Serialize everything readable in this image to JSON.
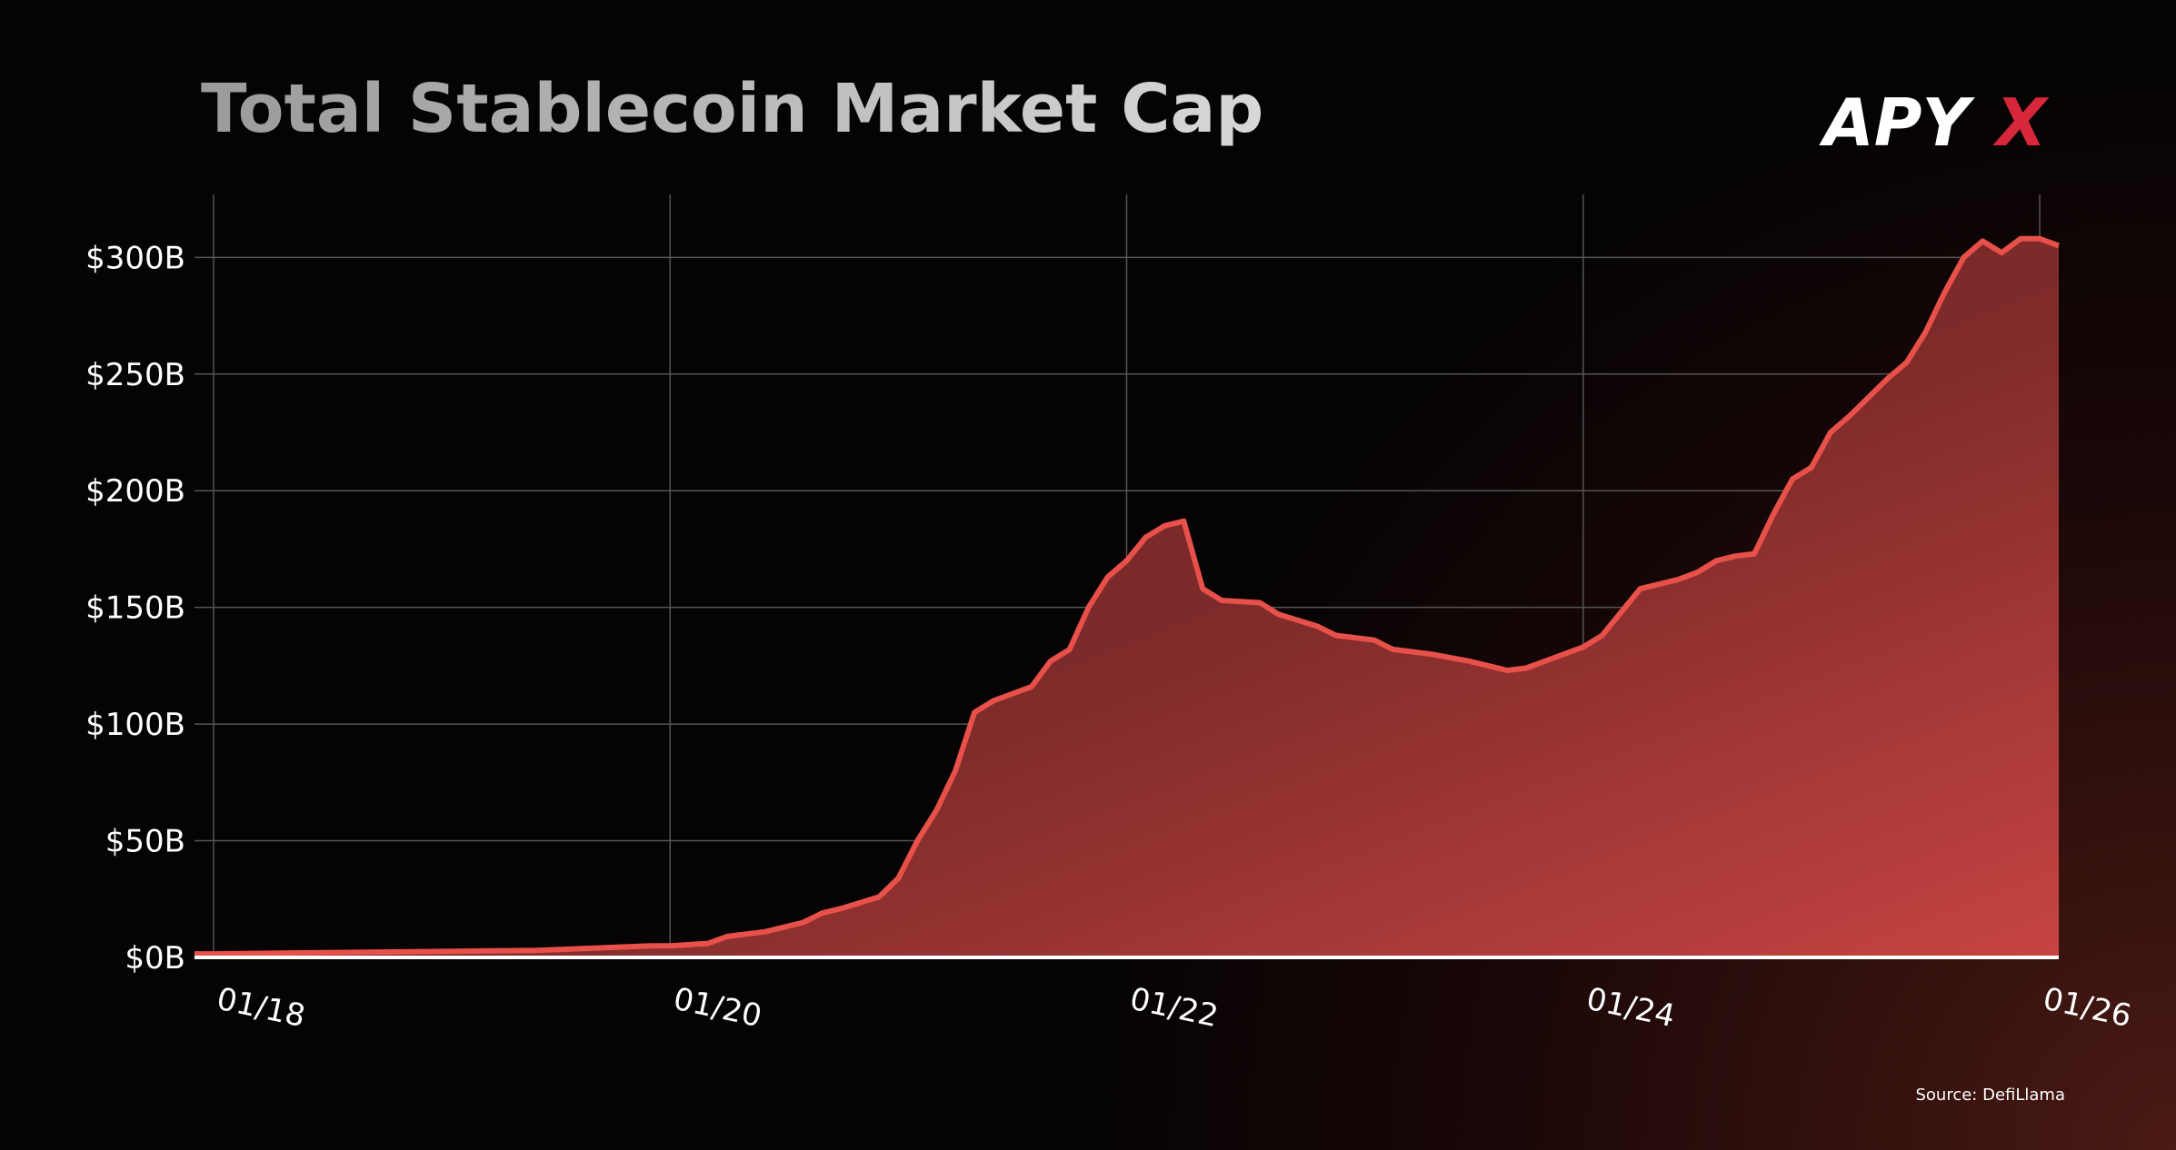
{
  "chart_data": {
    "type": "area",
    "title": "Total Stablecoin Market Cap",
    "logo": [
      "APY",
      "X"
    ],
    "source": "Source: DefiLlama",
    "color": "#e8504a",
    "x": [
      "2017-12",
      "2018-01",
      "2018-06",
      "2018-12",
      "2019-06",
      "2019-12",
      "2020-01",
      "2020-03",
      "2020-04",
      "2020-06",
      "2020-08",
      "2020-09",
      "2020-10",
      "2020-12",
      "2021-01",
      "2021-02",
      "2021-03",
      "2021-04",
      "2021-05",
      "2021-06",
      "2021-08",
      "2021-09",
      "2021-10",
      "2021-11",
      "2021-12",
      "2022-01",
      "2022-02",
      "2022-03",
      "2022-04",
      "2022-05",
      "2022-06",
      "2022-08",
      "2022-09",
      "2022-11",
      "2022-12",
      "2023-02",
      "2023-03",
      "2023-05",
      "2023-07",
      "2023-09",
      "2023-10",
      "2023-11",
      "2023-12",
      "2024-01",
      "2024-02",
      "2024-03",
      "2024-04",
      "2024-05",
      "2024-06",
      "2024-07",
      "2024-08",
      "2024-09",
      "2024-10",
      "2024-11",
      "2024-12",
      "2025-01",
      "2025-02",
      "2025-03",
      "2025-04",
      "2025-05",
      "2025-06",
      "2025-07",
      "2025-08",
      "2025-09",
      "2025-10",
      "2025-11",
      "2025-12",
      "2026-01",
      "2026-02"
    ],
    "values": [
      1.5,
      1.5,
      2,
      2.5,
      3,
      5,
      5,
      6,
      9,
      11,
      15,
      19,
      21,
      26,
      34,
      50,
      63,
      80,
      105,
      110,
      116,
      127,
      132,
      150,
      163,
      170,
      180,
      185,
      187,
      158,
      153,
      152,
      147,
      142,
      138,
      136,
      132,
      130,
      127,
      123,
      124,
      127,
      130,
      133,
      138,
      148,
      158,
      160,
      162,
      165,
      170,
      172,
      173,
      190,
      205,
      210,
      225,
      232,
      240,
      248,
      255,
      268,
      285,
      300,
      307,
      302,
      308,
      308,
      305
    ],
    "xlim": [
      "2017-12",
      "2026-02"
    ],
    "xticks": [
      {
        "value": "2018-01",
        "label": "01/18"
      },
      {
        "value": "2020-01",
        "label": "01/20"
      },
      {
        "value": "2022-01",
        "label": "01/22"
      },
      {
        "value": "2024-01",
        "label": "01/24"
      },
      {
        "value": "2026-01",
        "label": "01/26"
      }
    ],
    "ylim": [
      0,
      327
    ],
    "yticks": [
      {
        "value": 0,
        "label": "$0B"
      },
      {
        "value": 50,
        "label": "$50B"
      },
      {
        "value": 100,
        "label": "$100B"
      },
      {
        "value": 150,
        "label": "$150B"
      },
      {
        "value": 200,
        "label": "$200B"
      },
      {
        "value": 250,
        "label": "$250B"
      },
      {
        "value": 300,
        "label": "$300B"
      }
    ],
    "grid": true
  }
}
